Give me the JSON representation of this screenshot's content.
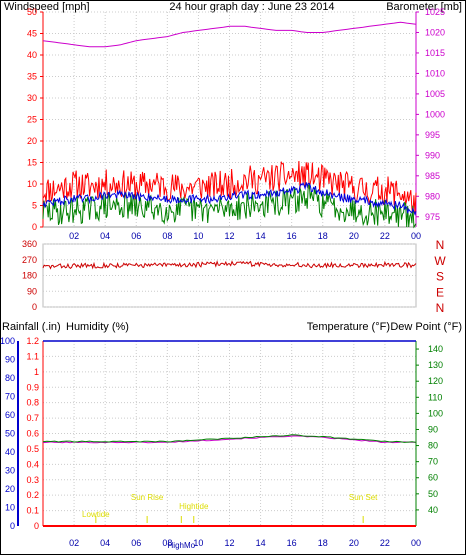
{
  "colors": {
    "wind": "#ff0000",
    "gust": "#0000dd",
    "avg": "#008000",
    "baro": "#cc00cc",
    "dir": "#cc0000",
    "rain": "#ff0000",
    "humidity": "#0000cc",
    "temp": "#008000",
    "dew": "#cc00cc",
    "tide": "#dddd00",
    "label_blue": "#0000aa",
    "grid": "#cccccc"
  },
  "header": {
    "wind_label": "Windspeed [mph]",
    "title": "24 hour graph day : June 23 2014",
    "baro_label": "Barometer [mb]"
  },
  "bottom": {
    "rain_label": "Rainfall (.in)",
    "humidity_label": "Humidity (%)",
    "temp_label": "Temperature (°F)",
    "dew_label": "Dew Point (°F)"
  },
  "direction_letters": [
    "N",
    "W",
    "S",
    "E",
    "N"
  ],
  "markers": [
    {
      "label": "Lowtide",
      "hour": 3.4
    },
    {
      "label": "Sun Rise",
      "hour": 6.7
    },
    {
      "label": "Hightide",
      "hour": 9.7
    },
    {
      "label": "HighMo",
      "hour": 8.9
    },
    {
      "label": "Sun Set",
      "hour": 20.6
    }
  ],
  "chart_data": [
    {
      "type": "line",
      "x_ticks": [
        "02",
        "04",
        "06",
        "08",
        "10",
        "12",
        "14",
        "16",
        "18",
        "20",
        "22",
        "00"
      ],
      "xlabel": "",
      "ylabel": "Windspeed [mph]",
      "y_ticks": [
        0,
        5,
        10,
        15,
        20,
        25,
        30,
        35,
        40,
        45,
        50
      ],
      "ylim": [
        0,
        50
      ],
      "y2label": "Barometer [mb]",
      "y2_ticks": [
        975,
        980,
        985,
        990,
        995,
        1000,
        1005,
        1010,
        1015,
        1020,
        1025
      ],
      "y2lim": [
        972.5,
        1025
      ],
      "hours": [
        0,
        1,
        2,
        3,
        4,
        5,
        6,
        7,
        8,
        9,
        10,
        11,
        12,
        13,
        14,
        15,
        16,
        17,
        18,
        19,
        20,
        21,
        22,
        23,
        24
      ],
      "series": [
        {
          "values": [
            8.5,
            9,
            10,
            9.5,
            10,
            10,
            9.5,
            10,
            9.5,
            9,
            9.5,
            9.5,
            10,
            11,
            11,
            11.5,
            12,
            12,
            11,
            10,
            9,
            8.5,
            8.5,
            8,
            5
          ]
        },
        {
          "values": [
            5.5,
            6,
            6.5,
            6.5,
            7.5,
            7.5,
            7,
            7,
            6.5,
            6.5,
            6.5,
            6.5,
            7,
            7.5,
            7.5,
            8,
            8.5,
            9.5,
            8,
            7,
            6.5,
            6,
            5.5,
            5,
            3
          ]
        },
        {
          "values": [
            3.5,
            3.5,
            4,
            4,
            5,
            5,
            4.5,
            4.5,
            4,
            4,
            4,
            4,
            4.5,
            5,
            5,
            5.5,
            6,
            7,
            5.5,
            4.5,
            4,
            3.5,
            3.5,
            3,
            1.5
          ]
        },
        {
          "axis": "y2",
          "values": [
            1018,
            1017.5,
            1017,
            1016.5,
            1016.5,
            1017,
            1018,
            1018.5,
            1019,
            1020,
            1020.5,
            1021,
            1021.5,
            1021.5,
            1021,
            1020.5,
            1020.5,
            1020,
            1020,
            1020.5,
            1021,
            1021.5,
            1022,
            1022.5,
            1022
          ]
        }
      ]
    },
    {
      "type": "line",
      "x_ticks": [
        "02",
        "04",
        "06",
        "08",
        "10",
        "12",
        "14",
        "16",
        "18",
        "20",
        "22",
        "00"
      ],
      "y_ticks": [
        0,
        90,
        180,
        270,
        360
      ],
      "ylim": [
        0,
        360
      ],
      "hours": [
        0,
        2,
        4,
        6,
        8,
        10,
        12,
        14,
        16,
        18,
        20,
        22,
        24
      ],
      "series": [
        {
          "values": [
            230,
            235,
            238,
            238,
            240,
            242,
            250,
            245,
            240,
            238,
            240,
            242,
            240
          ]
        }
      ]
    },
    {
      "type": "line",
      "x_ticks": [
        "02",
        "04",
        "06",
        "08",
        "10",
        "12",
        "14",
        "16",
        "18",
        "20",
        "22",
        "00"
      ],
      "ylabel": "Rainfall (.in)",
      "rain_ticks": [
        "0",
        "0.1",
        "0.2",
        "0.3",
        "0.4",
        "0.5",
        "0.6",
        "0.7",
        "0.8",
        "0.9",
        "1",
        "1.1",
        "1.2"
      ],
      "rain_lim": [
        0,
        1.2
      ],
      "humidity_ticks": [
        0,
        10,
        20,
        30,
        40,
        50,
        60,
        70,
        80,
        90,
        100
      ],
      "humidity_lim": [
        0,
        100
      ],
      "y2label": "Temperature (°F)",
      "temp_ticks": [
        40,
        50,
        60,
        70,
        80,
        90,
        100,
        110,
        120,
        130,
        140
      ],
      "temp_lim": [
        30,
        145
      ],
      "hours": [
        0,
        2,
        4,
        6,
        8,
        10,
        12,
        14,
        16,
        18,
        20,
        22,
        24
      ],
      "series": [
        {
          "values": [
            0,
            0,
            0,
            0,
            0,
            0,
            0,
            0,
            0,
            0,
            0,
            0,
            0
          ]
        },
        {
          "values": [
            100,
            100,
            100,
            100,
            100,
            100,
            100,
            100,
            100,
            100,
            100,
            100,
            100
          ]
        },
        {
          "values": [
            82.5,
            82.5,
            82.5,
            82.5,
            82.5,
            83.5,
            84.5,
            85.5,
            86.5,
            85.5,
            84,
            82.5,
            82
          ]
        },
        {
          "values": [
            82,
            82,
            82,
            82,
            82,
            83,
            84,
            85,
            86,
            85,
            83.5,
            82,
            82
          ]
        }
      ]
    }
  ]
}
